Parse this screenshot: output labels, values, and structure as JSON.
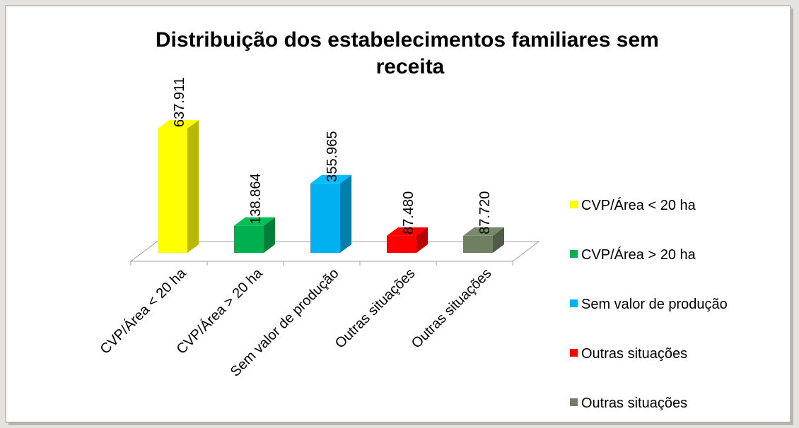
{
  "chart_data": {
    "type": "bar3d",
    "title": "Distribuição dos estabelecimentos familiares sem receita",
    "categories": [
      "CVP/Área < 20 ha",
      "CVP/Área > 20 ha",
      "Sem valor de produção",
      "Outras situações",
      "Outras situações"
    ],
    "values": [
      637911,
      138864,
      355965,
      87480,
      87720
    ],
    "value_labels": [
      "637.911",
      "138.864",
      "355.965",
      "87.480",
      "87.720"
    ],
    "colors": [
      "#ffff00",
      "#00b050",
      "#00b0f0",
      "#ff0000",
      "#6f7f62"
    ],
    "legend": "right"
  }
}
